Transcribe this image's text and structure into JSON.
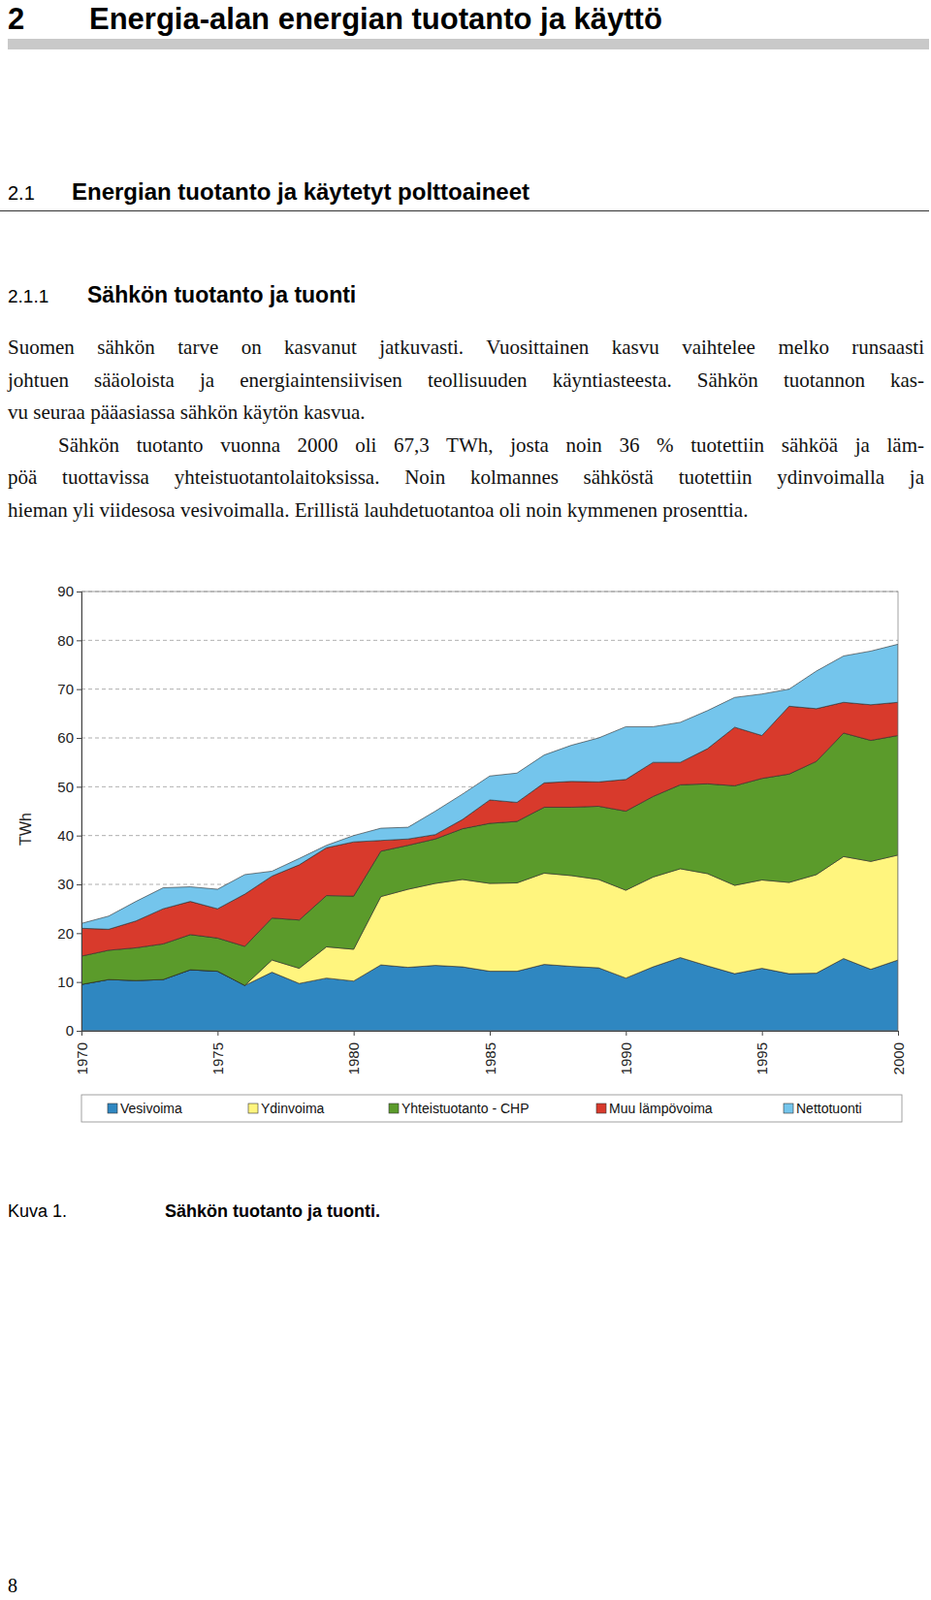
{
  "document": {
    "chapter": {
      "number": "2",
      "title": "Energia-alan energian tuotanto ja käyttö"
    },
    "section": {
      "number": "2.1",
      "title": "Energian tuotanto ja käytetyt polttoaineet"
    },
    "subsection": {
      "number": "2.1.1",
      "title": "Sähkön tuotanto ja tuonti"
    },
    "paragraphs": [
      [
        "Suomen sähkön tarve on kasvanut jatkuvasti. Vuosittainen kasvu vaihtelee melko runsaasti",
        "johtuen sääoloista ja energiaintensiivisen teollisuuden käyntiasteesta. Sähkön tuotannon kas-",
        "vu seuraa pääasiassa sähkön käytön kasvua."
      ],
      [
        "Sähkön tuotanto vuonna 2000 oli 67,3 TWh, josta noin 36 % tuotettiin sähköä ja läm-",
        "pöä tuottavissa yhteistuotantolaitoksissa. Noin kolmannes sähköstä tuotettiin ydinvoimalla ja",
        "hieman yli viidesosa vesivoimalla. Erillistä lauhdetuotantoa oli noin kymmenen prosenttia."
      ]
    ],
    "caption": {
      "label": "Kuva 1.",
      "title": "Sähkön tuotanto ja tuonti."
    },
    "page_number": 8
  },
  "chart_data": {
    "type": "area",
    "stacked": true,
    "grid": true,
    "legend": "bottom",
    "y_label": "TWh",
    "x": [
      1970,
      1971,
      1972,
      1973,
      1974,
      1975,
      1976,
      1977,
      1978,
      1979,
      1980,
      1981,
      1982,
      1983,
      1984,
      1985,
      1986,
      1987,
      1988,
      1989,
      1990,
      1991,
      1992,
      1993,
      1994,
      1995,
      1996,
      1997,
      1998,
      1999,
      2000
    ],
    "xlim": [
      1970,
      2000
    ],
    "xticks": [
      1970,
      1975,
      1980,
      1985,
      1990,
      1995,
      2000
    ],
    "ylim": [
      0,
      90
    ],
    "yticks": [
      0,
      10,
      20,
      30,
      40,
      50,
      60,
      70,
      80,
      90
    ],
    "series": [
      {
        "name": "Vesivoima",
        "color": "#2f87c1",
        "values": [
          9.5,
          10.5,
          10.3,
          10.5,
          12.5,
          12.2,
          9.3,
          12.0,
          9.7,
          10.8,
          10.2,
          13.5,
          13.0,
          13.4,
          13.1,
          12.2,
          12.2,
          13.6,
          13.2,
          12.9,
          10.8,
          13.1,
          15.0,
          13.3,
          11.7,
          12.8,
          11.7,
          11.8,
          14.8,
          12.6,
          14.5
        ]
      },
      {
        "name": "Ydinvoima",
        "color": "#fff57e",
        "values": [
          0,
          0,
          0,
          0,
          0,
          0,
          0,
          2.5,
          3.1,
          6.4,
          6.5,
          14.0,
          16.0,
          16.8,
          17.9,
          18.0,
          18.1,
          18.7,
          18.6,
          18.1,
          18.0,
          18.4,
          18.2,
          18.9,
          18.1,
          18.1,
          18.7,
          20.2,
          20.9,
          22.1,
          21.5
        ]
      },
      {
        "name": "Yhteistuotanto - CHP",
        "color": "#5b9b2b",
        "values": [
          5.8,
          6.0,
          6.7,
          7.3,
          7.2,
          6.8,
          8.0,
          8.6,
          9.9,
          10.5,
          10.9,
          9.3,
          9.0,
          9.1,
          10.4,
          12.3,
          12.6,
          13.5,
          14.0,
          15.0,
          16.2,
          16.5,
          17.2,
          18.4,
          20.4,
          20.8,
          22.2,
          23.2,
          25.3,
          24.8,
          24.5
        ]
      },
      {
        "name": "Muu lämpövoima",
        "color": "#d83a2c",
        "values": [
          5.7,
          4.3,
          5.5,
          7.2,
          6.8,
          6.0,
          10.7,
          8.6,
          11.3,
          9.8,
          11.1,
          2.2,
          1.3,
          0.9,
          1.9,
          4.8,
          3.9,
          5.0,
          5.3,
          5.0,
          6.5,
          7.0,
          4.6,
          7.2,
          12.0,
          8.8,
          13.9,
          10.8,
          6.3,
          7.3,
          6.8
        ]
      },
      {
        "name": "Nettotuonti",
        "color": "#74c5ec",
        "values": [
          1.0,
          2.7,
          4.0,
          4.3,
          3.0,
          4.0,
          4.0,
          1.0,
          1.3,
          0.5,
          1.3,
          2.5,
          2.4,
          4.8,
          5.2,
          4.9,
          6.0,
          5.7,
          7.4,
          9.0,
          10.8,
          7.3,
          8.2,
          7.8,
          6.1,
          8.5,
          3.5,
          7.7,
          9.5,
          11.0,
          11.9
        ]
      }
    ]
  }
}
